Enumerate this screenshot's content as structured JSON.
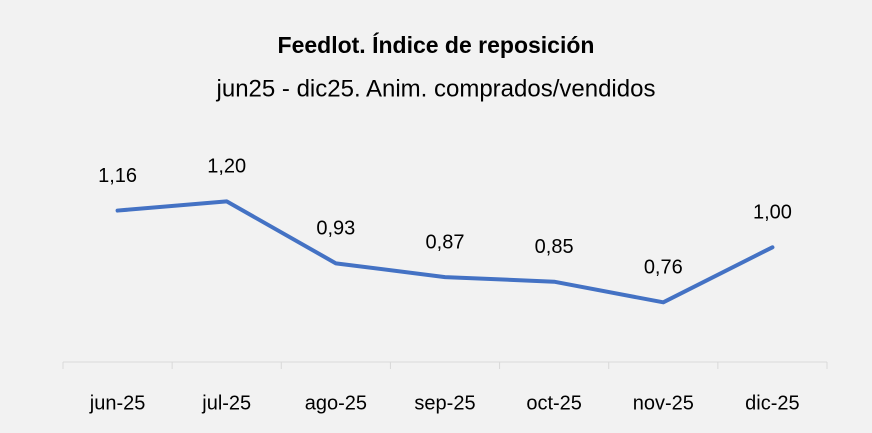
{
  "chart_data": {
    "type": "line",
    "title": "Feedlot. Índice de reposición",
    "subtitle": "jun25 - dic25. Anim. comprados/vendidos",
    "categories": [
      "jun-25",
      "jul-25",
      "ago-25",
      "sep-25",
      "oct-25",
      "nov-25",
      "dic-25"
    ],
    "series": [
      {
        "name": "Índice de reposición",
        "color": "#4472c4",
        "values": [
          1.16,
          1.2,
          0.93,
          0.87,
          0.85,
          0.76,
          1.0
        ],
        "value_labels": [
          "1,16",
          "1,20",
          "0,93",
          "0,87",
          "0,85",
          "0,76",
          "1,00"
        ]
      }
    ],
    "ylim": [
      0.5,
      1.4
    ]
  }
}
